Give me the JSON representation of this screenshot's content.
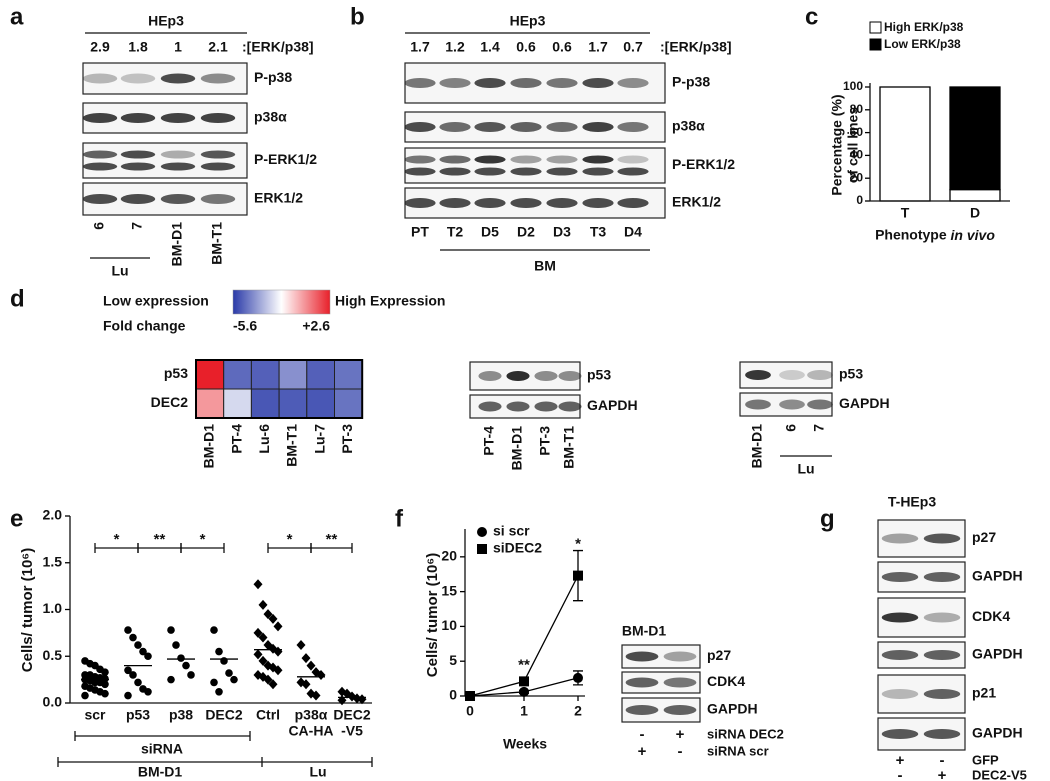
{
  "panel_labels": [
    "a",
    "b",
    "c",
    "d",
    "e",
    "f",
    "g"
  ],
  "panel_a": {
    "cell_line": "HEp3",
    "ratios": [
      "2.9",
      "1.8",
      "1",
      "2.1"
    ],
    "ratio_label": ":[ERK/p38]",
    "bands": [
      "P-p38",
      "p38α",
      "P-ERK1/2",
      "ERK1/2"
    ],
    "lanes": [
      "6",
      "7",
      "BM-D1",
      "BM-T1"
    ],
    "lane_group": "Lu"
  },
  "panel_b": {
    "cell_line": "HEp3",
    "ratios": [
      "1.7",
      "1.2",
      "1.4",
      "0.6",
      "0.6",
      "1.7",
      "0.7"
    ],
    "ratio_label": ":[ERK/p38]",
    "bands": [
      "P-p38",
      "p38α",
      "P-ERK1/2",
      "ERK1/2"
    ],
    "lanes": [
      "PT",
      "T2",
      "D5",
      "D2",
      "D3",
      "T3",
      "D4"
    ],
    "lane_group": "BM"
  },
  "panel_d": {
    "scale_low": "Low expression",
    "scale_high": "High Expression",
    "fold_change_label": "Fold change",
    "blot_1": {
      "bands": [
        "p53",
        "GAPDH"
      ],
      "lanes": [
        "PT-4",
        "BM-D1",
        "PT-3",
        "BM-T1"
      ]
    },
    "blot_2": {
      "bands": [
        "p53",
        "GAPDH"
      ],
      "lanes": [
        "BM-D1",
        "6",
        "7"
      ],
      "lane_group": "Lu"
    }
  },
  "panel_f_blot": {
    "title": "BM-D1",
    "bands": [
      "p27",
      "CDK4",
      "GAPDH"
    ],
    "treatments": [
      {
        "name": "siRNA DEC2",
        "signs": [
          "-",
          "+"
        ]
      },
      {
        "name": "siRNA scr",
        "signs": [
          "+",
          "-"
        ]
      }
    ]
  },
  "panel_g": {
    "title": "T-HEp3",
    "bands": [
      "p27",
      "GAPDH",
      "CDK4",
      "GAPDH",
      "p21",
      "GAPDH"
    ],
    "treatments": [
      {
        "name": "GFP",
        "signs": [
          "+",
          "-"
        ]
      },
      {
        "name": "DEC2-V5",
        "signs": [
          "-",
          "+"
        ]
      }
    ]
  },
  "chart_data": [
    {
      "type": "bar",
      "stacked": true,
      "ylabel": [
        "Percentage (%)",
        "of cell lines"
      ],
      "xlabel": "Phenotype",
      "xlabel_emphasis": "in vivo",
      "categories": [
        "T",
        "D"
      ],
      "series": [
        {
          "name": "High ERK/p38",
          "color": "#ffffff",
          "values": [
            100,
            10
          ]
        },
        {
          "name": "Low ERK/p38",
          "color": "#000000",
          "values": [
            0,
            90
          ]
        }
      ],
      "ylim": [
        0,
        100
      ],
      "yticks": [
        0,
        20,
        40,
        60,
        80,
        100
      ],
      "legend": "top-left"
    },
    {
      "type": "heatmap",
      "rows": [
        "p53",
        "DEC2"
      ],
      "columns": [
        "BM-D1",
        "PT-4",
        "Lu-6",
        "BM-T1",
        "Lu-7",
        "PT-3"
      ],
      "values": [
        [
          2.6,
          -4.6,
          -4.8,
          -3.8,
          -4.8,
          -4.4
        ],
        [
          0.4,
          -2.3,
          -5.0,
          -4.9,
          -5.0,
          -4.4
        ]
      ],
      "clim": [
        -5.6,
        2.6
      ],
      "cticks": [
        -5.6,
        {
          "value": 2.6,
          "label": "+2.6"
        }
      ],
      "colors": [
        "#2a3aa8",
        "#ffffff",
        "#e8202a"
      ]
    },
    {
      "type": "dot_plot",
      "ylabel": "Cells/ tumor (10⁶)",
      "categories": [
        "scr",
        "p53",
        "p38",
        "DEC2",
        "Ctrl",
        "p38α",
        "DEC2"
      ],
      "category_sublabels": [
        null,
        null,
        null,
        null,
        null,
        "CA-HA",
        "-V5"
      ],
      "markers": [
        "circle",
        "circle",
        "circle",
        "circle",
        "diamond",
        "diamond",
        "diamond"
      ],
      "points": [
        [
          0.45,
          0.42,
          0.4,
          0.36,
          0.33,
          0.3,
          0.3,
          0.28,
          0.27,
          0.26,
          0.25,
          0.24,
          0.22,
          0.22,
          0.2,
          0.18,
          0.16,
          0.14,
          0.12,
          0.1,
          0.08
        ],
        [
          0.78,
          0.7,
          0.62,
          0.55,
          0.5,
          0.35,
          0.3,
          0.22,
          0.15,
          0.12,
          0.08
        ],
        [
          0.78,
          0.62,
          0.48,
          0.4,
          0.3,
          0.25
        ],
        [
          0.78,
          0.55,
          0.45,
          0.32,
          0.25,
          0.22,
          0.12
        ],
        [
          1.27,
          1.05,
          0.95,
          0.9,
          0.82,
          0.75,
          0.7,
          0.62,
          0.58,
          0.55,
          0.52,
          0.45,
          0.4,
          0.38,
          0.35,
          0.3,
          0.28,
          0.25,
          0.2
        ],
        [
          0.62,
          0.48,
          0.4,
          0.33,
          0.3,
          0.22,
          0.2,
          0.1,
          0.08
        ],
        [
          0.12,
          0.1,
          0.07,
          0.05,
          0.04,
          0.03
        ]
      ],
      "medians": [
        0.25,
        0.4,
        0.47,
        0.47,
        0.57,
        0.28,
        0.06
      ],
      "group_label": "siRNA",
      "groups": [
        "BM-D1",
        "Lu"
      ],
      "significance": [
        "*",
        "**",
        "*",
        "*",
        "**"
      ],
      "ylim": [
        0,
        2
      ],
      "yticks": [
        {
          "value": 0,
          "label": "0.0"
        },
        {
          "value": 0.5,
          "label": "0.5"
        },
        {
          "value": 1,
          "label": "1.0"
        },
        {
          "value": 1.5,
          "label": "1.5"
        },
        {
          "value": 2,
          "label": "2.0"
        }
      ]
    },
    {
      "type": "line",
      "xlabel": "Weeks",
      "ylabel": "Cells/ tumor (10⁶)",
      "x": [
        0,
        1,
        2
      ],
      "xlim": [
        0,
        2
      ],
      "xticks": [
        0,
        1,
        2
      ],
      "ylim": [
        0,
        24
      ],
      "yticks": [
        0,
        5,
        10,
        15,
        20
      ],
      "series": [
        {
          "name": "si scr",
          "marker": "circle",
          "color": "#000000",
          "values": [
            0,
            0.6,
            2.6
          ],
          "errors": [
            0,
            0.2,
            1.0
          ]
        },
        {
          "name": "siDEC2",
          "marker": "square",
          "color": "#000000",
          "values": [
            0,
            2.1,
            17.3
          ],
          "errors": [
            0,
            0.3,
            3.6
          ]
        }
      ],
      "annotations": [
        {
          "text": "**",
          "x": 1,
          "y": 4.4
        },
        {
          "text": "*",
          "x": 2,
          "y": 21.8
        }
      ]
    }
  ]
}
